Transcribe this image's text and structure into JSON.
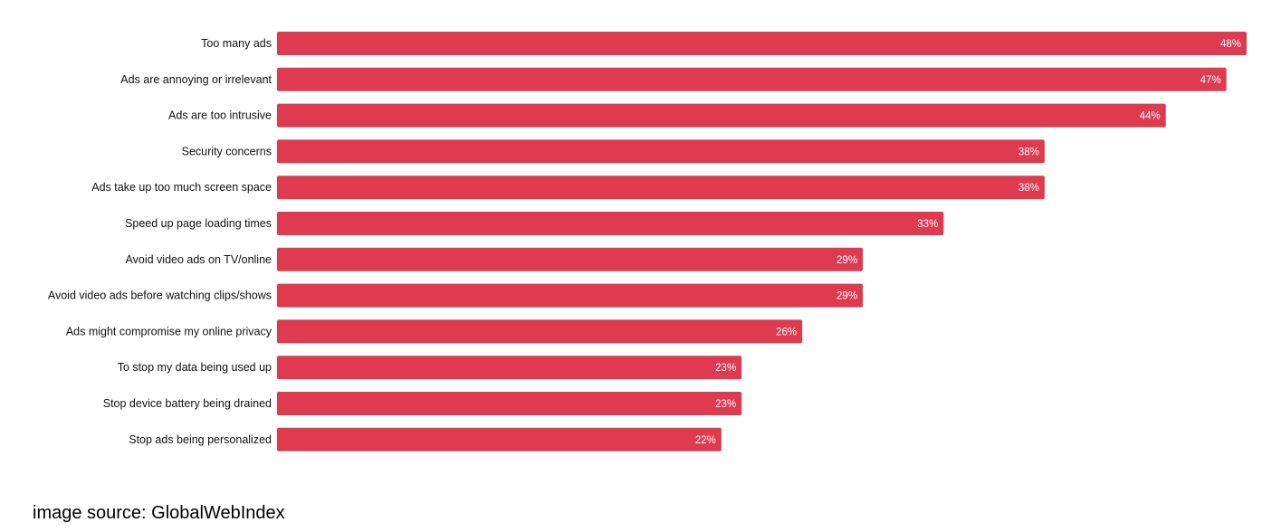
{
  "chart_data": {
    "type": "bar",
    "orientation": "horizontal",
    "categories": [
      "Too many ads",
      "Ads are annoying or irrelevant",
      "Ads are too intrusive",
      "Security concerns",
      "Ads take up too much screen space",
      "Speed up page loading times",
      "Avoid video ads on TV/online",
      "Avoid video ads before watching clips/shows",
      "Ads might compromise my online privacy",
      "To stop my data being used up",
      "Stop device battery being drained",
      "Stop ads being personalized"
    ],
    "values": [
      48,
      47,
      44,
      38,
      38,
      33,
      29,
      29,
      26,
      23,
      23,
      22
    ],
    "value_labels": [
      "48%",
      "47%",
      "44%",
      "38%",
      "38%",
      "33%",
      "29%",
      "29%",
      "26%",
      "23%",
      "23%",
      "22%"
    ],
    "title": "",
    "xlabel": "",
    "ylabel": "",
    "xlim": [
      0,
      48
    ],
    "grid": false,
    "bar_color": "#de3a50"
  },
  "footer": {
    "source": "image source: GlobalWebIndex"
  }
}
